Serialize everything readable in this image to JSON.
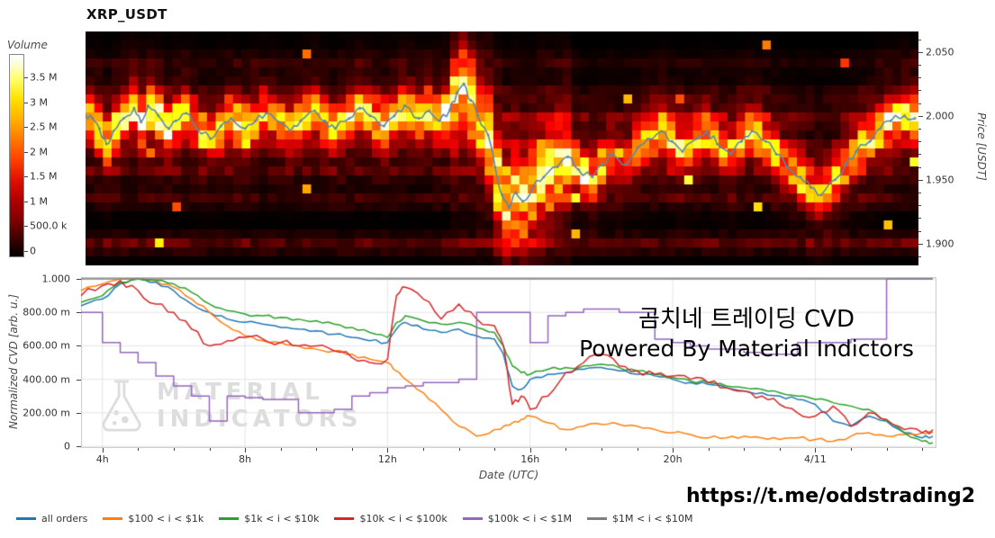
{
  "overlays": {
    "korean": "곰치네 트레이딩 CVD",
    "powered": "Powered By Material Indictors",
    "telegram": "https://t.me/oddstrading2",
    "watermark_line1": "MATERIAL",
    "watermark_line2": "INDICATORS"
  },
  "chart_data": [
    {
      "type": "heatmap",
      "title": "XRP_USDT",
      "colorbar": {
        "label": "Volume",
        "ticks": [
          "3.5 M",
          "3 M",
          "2.5 M",
          "2 M",
          "1.5 M",
          "1 M",
          "500.0 k",
          "0"
        ],
        "colormap": "hot"
      },
      "y_axis": {
        "label": "Price [USDT]",
        "ticks": [
          {
            "p": 2.05,
            "label": "2.050"
          },
          {
            "p": 2.0,
            "label": "2.000"
          },
          {
            "p": 1.95,
            "label": "1.950"
          },
          {
            "p": 1.9,
            "label": "1.900"
          }
        ],
        "range": [
          1.883,
          2.066
        ]
      },
      "x_range_hours": [
        3.4,
        27.4
      ],
      "price_line": {
        "color": "#5b87ad",
        "hours": [
          3.4,
          3.6,
          3.8,
          4.0,
          4.2,
          4.5,
          4.8,
          5.0,
          5.2,
          5.5,
          5.8,
          6.0,
          6.3,
          6.6,
          7.0,
          7.3,
          7.6,
          8.0,
          8.3,
          8.6,
          9.0,
          9.3,
          9.6,
          10.0,
          10.3,
          10.6,
          11.0,
          11.3,
          11.6,
          12.0,
          12.3,
          12.6,
          13.0,
          13.3,
          13.6,
          13.9,
          14.1,
          14.3,
          14.5,
          14.7,
          15.0,
          15.2,
          15.4,
          15.6,
          15.8,
          16.0,
          16.3,
          16.6,
          17.0,
          17.3,
          17.6,
          18.0,
          18.3,
          18.6,
          19.0,
          19.3,
          19.6,
          20.0,
          20.3,
          20.6,
          21.0,
          21.3,
          21.6,
          22.0,
          22.3,
          22.6,
          23.0,
          23.3,
          23.6,
          24.0,
          24.3,
          24.6,
          25.0,
          25.3,
          25.6,
          26.0,
          26.3,
          26.6,
          27.0,
          27.3
        ],
        "prices": [
          2.0,
          1.998,
          1.99,
          1.978,
          1.988,
          1.998,
          2.006,
          1.995,
          2.008,
          2.0,
          1.99,
          1.996,
          2.002,
          1.99,
          1.982,
          1.992,
          1.998,
          1.99,
          1.996,
          2.002,
          1.995,
          1.988,
          1.996,
          2.004,
          1.996,
          1.99,
          1.998,
          2.006,
          2.0,
          1.992,
          2.0,
          2.008,
          1.998,
          2.004,
          1.996,
          2.005,
          2.018,
          2.025,
          2.012,
          2.0,
          1.985,
          1.96,
          1.938,
          1.928,
          1.94,
          1.933,
          1.945,
          1.952,
          1.96,
          1.968,
          1.958,
          1.952,
          1.962,
          1.97,
          1.962,
          1.975,
          1.982,
          1.988,
          1.98,
          1.972,
          1.982,
          1.988,
          1.978,
          1.97,
          1.98,
          1.988,
          1.98,
          1.97,
          1.96,
          1.952,
          1.944,
          1.938,
          1.95,
          1.962,
          1.972,
          1.98,
          1.99,
          1.996,
          2.0,
          1.998
        ]
      },
      "gen": {
        "cols": 96,
        "rows": 26,
        "seed": 13,
        "sigma": 0.011,
        "sigma_wide": 0.02,
        "wide_from": 13.9,
        "wide_to": 17.3,
        "bands": [
          [
            1.9,
            0.3
          ],
          [
            1.935,
            0.18
          ],
          [
            1.957,
            0.22
          ],
          [
            1.976,
            0.24
          ],
          [
            1.998,
            0.32
          ],
          [
            2.016,
            0.16
          ],
          [
            2.042,
            0.1
          ]
        ],
        "activity_hours": [
          3.4,
          5,
          6,
          7,
          8,
          9,
          10,
          11,
          12,
          13,
          13.8,
          14.6,
          15.2,
          16,
          17,
          18,
          19,
          19.6,
          20.5,
          21.5,
          22.5,
          23.5,
          24.5,
          25.5,
          26.5,
          27.4
        ],
        "activity": [
          0.8,
          1.0,
          0.9,
          0.75,
          0.9,
          0.7,
          0.8,
          0.85,
          0.9,
          0.8,
          1.0,
          0.85,
          1.0,
          0.9,
          0.9,
          0.8,
          0.65,
          0.8,
          0.85,
          0.75,
          0.8,
          0.7,
          0.75,
          0.8,
          0.9,
          0.9
        ]
      }
    },
    {
      "type": "line",
      "x_label": "Date (UTC)",
      "y_label": "Normalized CVD [arb. u.]",
      "ylim": [
        0,
        1
      ],
      "y_ticks": [
        {
          "v": 1.0,
          "label": "1.000"
        },
        {
          "v": 0.8,
          "label": "800.00 m"
        },
        {
          "v": 0.6,
          "label": "600.00 m"
        },
        {
          "v": 0.4,
          "label": "400.00 m"
        },
        {
          "v": 0.2,
          "label": "200.00 m"
        },
        {
          "v": 0.0,
          "label": "0"
        }
      ],
      "x_ticks": [
        {
          "h": 4,
          "label": "4h"
        },
        {
          "h": 8,
          "label": "8h"
        },
        {
          "h": 12,
          "label": "12h"
        },
        {
          "h": 16,
          "label": "16h"
        },
        {
          "h": 20,
          "label": "20h"
        },
        {
          "h": 24,
          "label": "4/11"
        }
      ],
      "x_range_hours": [
        3.4,
        27.4
      ],
      "x_hours": [
        3.4,
        4,
        4.5,
        5,
        5.5,
        6,
        6.5,
        7,
        7.5,
        8,
        8.5,
        9,
        9.5,
        10,
        10.5,
        11,
        11.5,
        12,
        12.25,
        12.5,
        13,
        13.5,
        14,
        14.5,
        15,
        15.25,
        15.5,
        15.75,
        16,
        16.5,
        17,
        17.5,
        18,
        18.5,
        19,
        19.5,
        20,
        20.5,
        21,
        21.5,
        22,
        22.5,
        23,
        23.5,
        24,
        24.5,
        25,
        25.5,
        26,
        26.5,
        27,
        27.3
      ],
      "series": [
        {
          "name": "all orders",
          "color": "#1f77b4",
          "step": false,
          "jitter": 0.01,
          "values": [
            0.84,
            0.88,
            0.97,
            1.0,
            0.98,
            0.93,
            0.85,
            0.8,
            0.76,
            0.74,
            0.73,
            0.71,
            0.7,
            0.69,
            0.67,
            0.65,
            0.63,
            0.62,
            0.7,
            0.74,
            0.7,
            0.68,
            0.7,
            0.66,
            0.64,
            0.55,
            0.36,
            0.34,
            0.4,
            0.43,
            0.44,
            0.46,
            0.47,
            0.45,
            0.43,
            0.42,
            0.4,
            0.38,
            0.37,
            0.35,
            0.33,
            0.32,
            0.3,
            0.28,
            0.25,
            0.15,
            0.12,
            0.18,
            0.15,
            0.08,
            0.05,
            0.06
          ]
        },
        {
          "name": "$100 < i < $1k",
          "color": "#ff7f0e",
          "step": false,
          "jitter": 0.012,
          "values": [
            0.93,
            0.97,
            1.0,
            1.0,
            0.99,
            0.95,
            0.88,
            0.8,
            0.72,
            0.66,
            0.63,
            0.62,
            0.6,
            0.58,
            0.57,
            0.55,
            0.52,
            0.5,
            0.45,
            0.4,
            0.32,
            0.22,
            0.12,
            0.06,
            0.1,
            0.12,
            0.14,
            0.16,
            0.18,
            0.14,
            0.1,
            0.12,
            0.13,
            0.13,
            0.12,
            0.1,
            0.08,
            0.07,
            0.05,
            0.05,
            0.06,
            0.05,
            0.04,
            0.05,
            0.04,
            0.03,
            0.06,
            0.08,
            0.06,
            0.07,
            0.08,
            0.08
          ]
        },
        {
          "name": "$1k < i < $10k",
          "color": "#2ca02c",
          "step": false,
          "jitter": 0.01,
          "values": [
            0.86,
            0.9,
            0.98,
            1.0,
            0.99,
            0.97,
            0.92,
            0.85,
            0.81,
            0.79,
            0.78,
            0.77,
            0.76,
            0.75,
            0.73,
            0.71,
            0.68,
            0.65,
            0.74,
            0.78,
            0.75,
            0.73,
            0.74,
            0.71,
            0.68,
            0.6,
            0.48,
            0.44,
            0.43,
            0.46,
            0.47,
            0.48,
            0.49,
            0.47,
            0.45,
            0.43,
            0.41,
            0.39,
            0.38,
            0.36,
            0.35,
            0.34,
            0.32,
            0.3,
            0.28,
            0.26,
            0.24,
            0.22,
            0.15,
            0.08,
            0.03,
            0.02
          ]
        },
        {
          "name": "$10k < i < $100k",
          "color": "#d62728",
          "step": false,
          "jitter": 0.022,
          "values": [
            0.9,
            0.96,
            0.99,
            0.93,
            0.85,
            0.8,
            0.7,
            0.6,
            0.63,
            0.65,
            0.64,
            0.62,
            0.6,
            0.6,
            0.57,
            0.53,
            0.5,
            0.52,
            0.9,
            0.95,
            0.88,
            0.76,
            0.85,
            0.76,
            0.72,
            0.6,
            0.25,
            0.3,
            0.22,
            0.3,
            0.44,
            0.5,
            0.55,
            0.48,
            0.45,
            0.43,
            0.42,
            0.4,
            0.38,
            0.35,
            0.33,
            0.3,
            0.25,
            0.2,
            0.18,
            0.24,
            0.12,
            0.2,
            0.16,
            0.1,
            0.08,
            0.1
          ]
        },
        {
          "name": "$100k < i < $1M",
          "color": "#9467bd",
          "step": true,
          "jitter": 0,
          "values": [
            0.8,
            0.62,
            0.56,
            0.5,
            0.42,
            0.36,
            0.3,
            0.15,
            0.3,
            0.29,
            0.28,
            0.28,
            0.2,
            0.2,
            0.22,
            0.3,
            0.32,
            0.35,
            0.35,
            0.36,
            0.38,
            0.38,
            0.4,
            0.8,
            0.8,
            0.8,
            0.8,
            0.8,
            0.62,
            0.78,
            0.8,
            0.82,
            0.82,
            0.8,
            0.8,
            0.64,
            0.62,
            0.6,
            0.58,
            0.58,
            0.56,
            0.55,
            0.55,
            0.62,
            0.62,
            0.62,
            0.64,
            0.64,
            1.0,
            1.0,
            1.0,
            1.0
          ]
        },
        {
          "name": "$1M < i < $10M",
          "color": "#7f7f7f",
          "step": true,
          "jitter": 0,
          "values": [
            1,
            1,
            1,
            1,
            1,
            1,
            1,
            1,
            1,
            1,
            1,
            1,
            1,
            1,
            1,
            1,
            1,
            1,
            1,
            1,
            1,
            1,
            1,
            1,
            1,
            1,
            1,
            1,
            1,
            1,
            1,
            1,
            1,
            1,
            1,
            1,
            1,
            1,
            1,
            1,
            1,
            1,
            1,
            1,
            1,
            1,
            1,
            1,
            1,
            1,
            1,
            1
          ]
        }
      ]
    }
  ]
}
